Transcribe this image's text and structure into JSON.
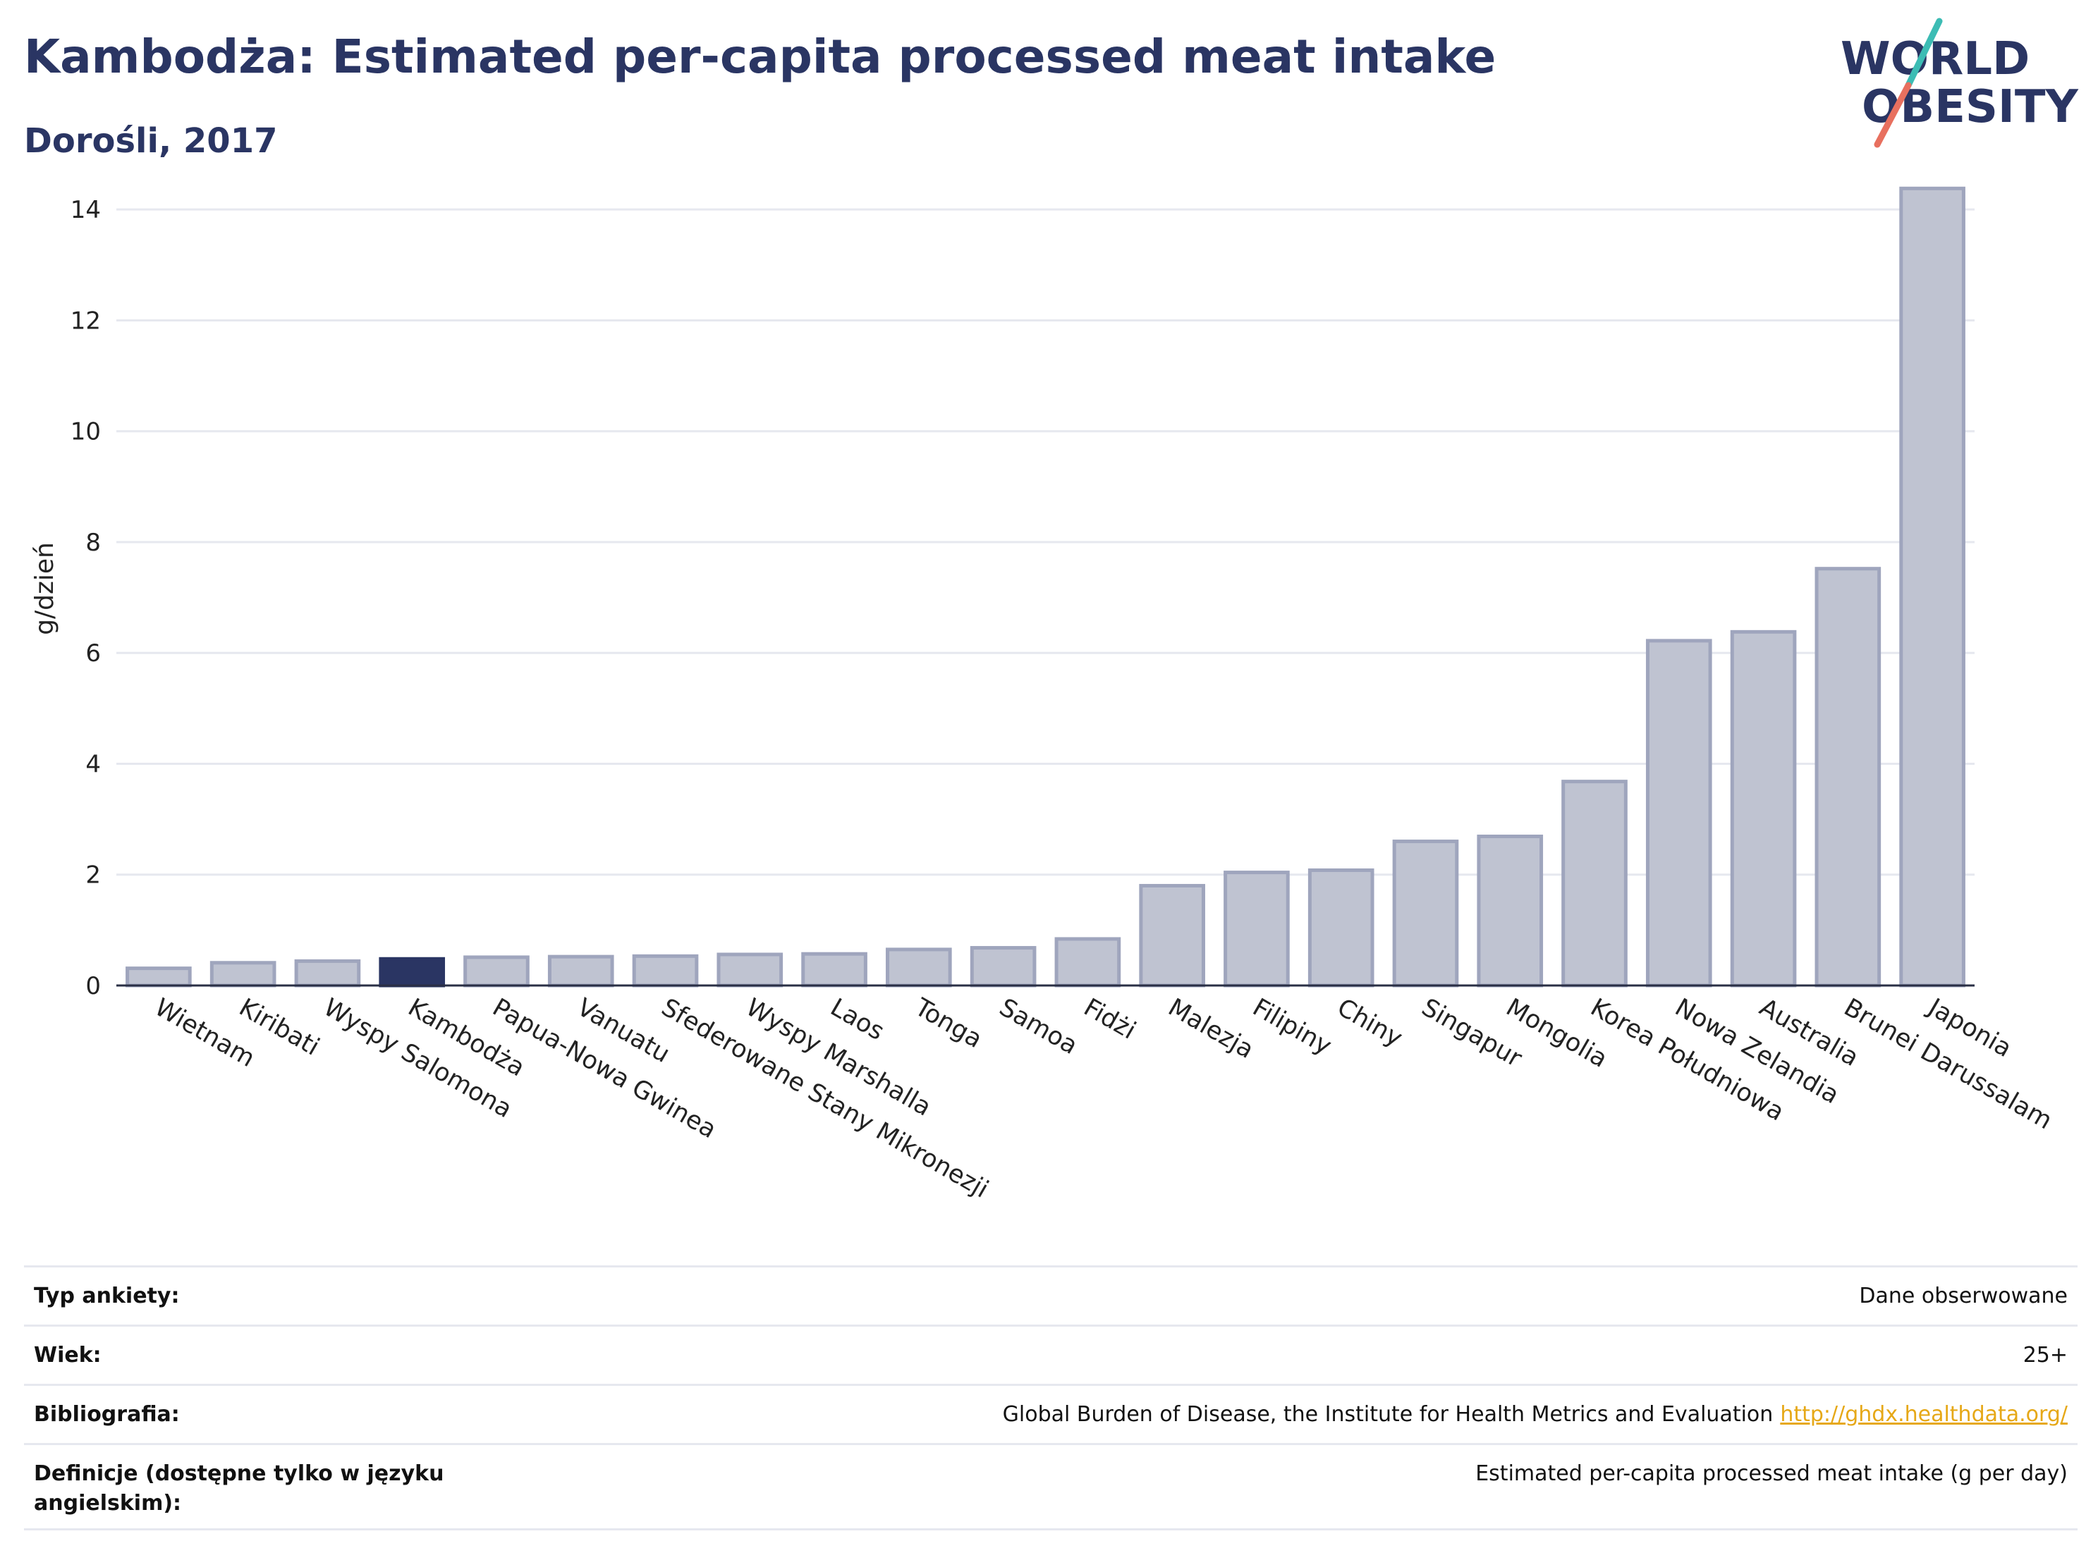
{
  "header": {
    "title": "Kambodża: Estimated per-capita processed meat intake",
    "subtitle": "Dorośli, 2017"
  },
  "logo": {
    "line1": "WORLD",
    "line2": "OBESITY"
  },
  "colors": {
    "text": "#2a3563",
    "bar_default": "#bfc3d1",
    "bar_default_stroke": "#9fa5bd",
    "bar_highlight": "#2a3563",
    "grid": "#e6e8ef",
    "link": "#e6a817",
    "logo_teal": "#3cbcb4",
    "logo_coral": "#e8705f"
  },
  "chart_data": {
    "type": "bar",
    "title": "Kambodża: Estimated per-capita processed meat intake",
    "subtitle": "Dorośli, 2017",
    "xlabel": "",
    "ylabel": "g/dzień",
    "ylim": [
      0,
      14.6
    ],
    "yticks": [
      0,
      2,
      4,
      6,
      8,
      10,
      12,
      14
    ],
    "grid": true,
    "highlight": "Kambodża",
    "categories": [
      "Wietnam",
      "Kiribati",
      "Wyspy Salomona",
      "Kambodża",
      "Papua-Nowa Gwinea",
      "Vanuatu",
      "Sfederowane Stany Mikronezji",
      "Wyspy Marshalla",
      "Laos",
      "Tonga",
      "Samoa",
      "Fidżi",
      "Malezja",
      "Filipiny",
      "Chiny",
      "Singapur",
      "Mongolia",
      "Korea Południowa",
      "Nowa Zelandia",
      "Australia",
      "Brunei Darussalam",
      "Japonia"
    ],
    "values": [
      0.31,
      0.41,
      0.44,
      0.48,
      0.51,
      0.52,
      0.53,
      0.56,
      0.57,
      0.65,
      0.68,
      0.84,
      1.8,
      2.04,
      2.08,
      2.6,
      2.69,
      3.68,
      6.22,
      6.38,
      7.52,
      14.38
    ]
  },
  "info": {
    "rows": [
      {
        "key": "Typ ankiety:",
        "value": "Dane obserwowane",
        "link": ""
      },
      {
        "key": "Wiek:",
        "value": "25+",
        "link": ""
      },
      {
        "key": "Bibliografia:",
        "value": "Global Burden of Disease, the Institute for Health Metrics and Evaluation",
        "link": "http://ghdx.healthdata.org/"
      },
      {
        "key": "Definicje (dostępne tylko w języku angielskim):",
        "value": "Estimated per-capita processed meat intake (g per day)",
        "link": ""
      }
    ]
  }
}
